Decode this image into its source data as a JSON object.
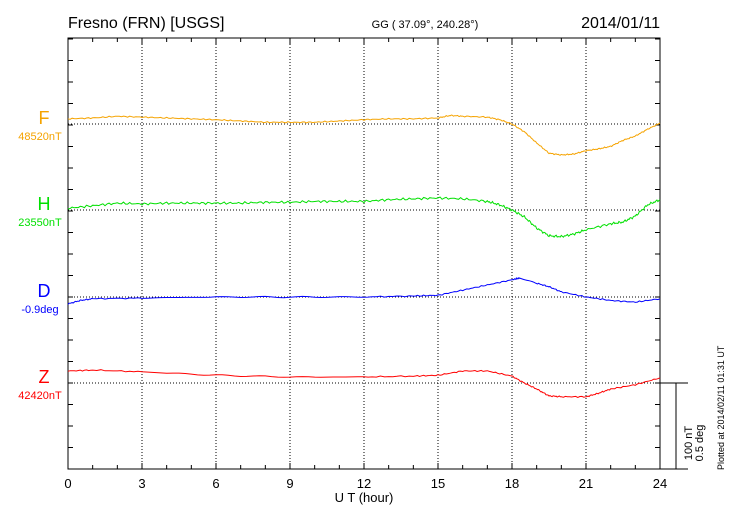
{
  "header": {
    "station": "Fresno (FRN)  [USGS]",
    "coords": "GG ( 37.09°, 240.28°)",
    "date": "2014/01/11"
  },
  "footer": {
    "plotted": "Plotted at 2014/02/11 01:31  UT"
  },
  "scale": {
    "line1": "100 nT",
    "line2": "0.5 deg"
  },
  "chart_data": {
    "type": "line",
    "xlabel": "U T (hour)",
    "xlim": [
      0,
      24
    ],
    "xticks": [
      "0",
      "3",
      "6",
      "9",
      "12",
      "15",
      "18",
      "21",
      "24"
    ],
    "scale_bar": {
      "nT": 100,
      "deg": 0.5
    },
    "grid": "dotted, every 3 h and at each baseline",
    "series": [
      {
        "name": "F",
        "baseline_label": "48520nT",
        "unit": "nT",
        "color": "#f5a300",
        "x": [
          0,
          1,
          2,
          3,
          4,
          5,
          6,
          7,
          8,
          9,
          10,
          11,
          12,
          13,
          14,
          15,
          15.5,
          16,
          17,
          17.5,
          18,
          18.5,
          19,
          19.5,
          20,
          20.5,
          21,
          21.5,
          22,
          22.5,
          23,
          23.5,
          24
        ],
        "values": [
          6,
          7,
          9,
          8,
          7,
          6,
          5,
          3.5,
          2,
          2,
          2,
          3.5,
          5,
          6,
          6,
          7,
          10,
          9,
          8,
          5,
          0,
          -9,
          -22,
          -34,
          -36,
          -35,
          -31,
          -29,
          -26,
          -19,
          -14,
          -6,
          1
        ]
      },
      {
        "name": "H",
        "baseline_label": "23550nT",
        "unit": "nT",
        "color": "#00e000",
        "x": [
          0,
          1,
          2,
          3,
          4,
          5,
          6,
          7,
          8,
          9,
          10,
          11,
          12,
          13,
          14,
          15,
          16,
          17,
          17.5,
          18,
          18.5,
          19,
          19.5,
          20,
          20.5,
          21,
          22,
          22.5,
          23,
          23.5,
          24
        ],
        "values": [
          2,
          5,
          8,
          7,
          8,
          8,
          8,
          8,
          9,
          9,
          10,
          10,
          10,
          12,
          13,
          14,
          13,
          10,
          6,
          0,
          -8,
          -21,
          -30,
          -31,
          -28,
          -23,
          -16,
          -14,
          -7,
          6,
          12
        ]
      },
      {
        "name": "D",
        "baseline_label": "-0.9deg",
        "unit": "deg",
        "color": "#0000ff",
        "x": [
          0,
          0.5,
          1,
          3,
          6,
          9,
          12,
          14,
          15,
          16,
          17,
          18,
          18.3,
          19,
          19.5,
          20,
          21,
          22,
          23,
          24
        ],
        "values": [
          -0.04,
          -0.02,
          -0.01,
          -0.006,
          0,
          0,
          0,
          0.006,
          0.01,
          0.04,
          0.07,
          0.1,
          0.11,
          0.08,
          0.06,
          0.03,
          0,
          -0.02,
          -0.03,
          -0.01
        ]
      },
      {
        "name": "Z",
        "baseline_label": "42420nT",
        "unit": "nT",
        "color": "#ff0000",
        "x": [
          0,
          1,
          3,
          6,
          9,
          12,
          14,
          15,
          16,
          17,
          18,
          18.5,
          19,
          19.5,
          20,
          21,
          21.5,
          22,
          23,
          24
        ],
        "values": [
          14,
          15,
          13,
          9,
          7,
          7,
          8,
          9,
          14,
          14,
          8,
          0,
          -7,
          -15,
          -16,
          -16,
          -12,
          -7,
          -2,
          6
        ]
      }
    ]
  }
}
